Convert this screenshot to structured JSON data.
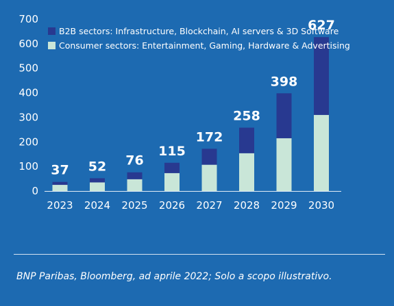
{
  "chart_data": {
    "type": "bar",
    "stacked": true,
    "categories": [
      "2023",
      "2024",
      "2025",
      "2026",
      "2027",
      "2028",
      "2029",
      "2030"
    ],
    "series": [
      {
        "name": "Consumer sectors: Entertainment, Gaming, Hardware & Advertising",
        "color": "#c9e6d8",
        "values": [
          25,
          35,
          48,
          73,
          107,
          154,
          215,
          310
        ]
      },
      {
        "name": "B2B sectors: Infrastructure, Blockchain, AI servers & 3D Software",
        "color": "#283990",
        "values": [
          12,
          17,
          28,
          42,
          65,
          104,
          183,
          317
        ]
      }
    ],
    "totals": [
      "37",
      "52",
      "76",
      "115",
      "172",
      "258",
      "398",
      "627"
    ],
    "yticks": [
      "0",
      "100",
      "200",
      "300",
      "400",
      "500",
      "600",
      "700"
    ],
    "ylim": [
      0,
      700
    ],
    "grid": false,
    "legend_position": "top-left",
    "legend_order": [
      1,
      0
    ]
  },
  "footer": {
    "source": "BNP Paribas, Bloomberg, ad aprile 2022; Solo a scopo illustrativo."
  }
}
